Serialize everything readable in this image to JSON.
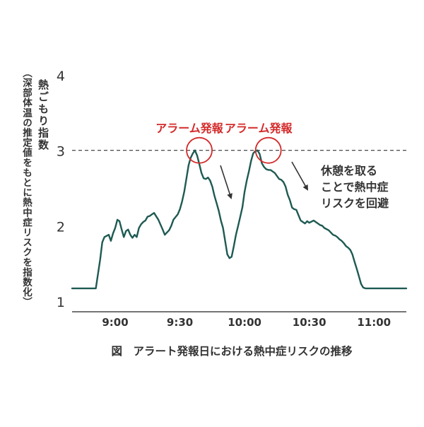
{
  "chart_data": {
    "type": "line",
    "caption": "図　アラート発報日における熱中症リスクの推移",
    "ylabel_main": "熱ごもり指数",
    "ylabel_sub": "（深部体温の推定値をもとに熱中症リスクを指数化）",
    "ylim": [
      1,
      4
    ],
    "yticks": [
      "1",
      "2",
      "3",
      "4"
    ],
    "xticks": [
      {
        "label": "9:00",
        "t": 540
      },
      {
        "label": "9:30",
        "t": 570
      },
      {
        "label": "10:00",
        "t": 600
      },
      {
        "label": "10:30",
        "t": 630
      },
      {
        "label": "11:00",
        "t": 660
      }
    ],
    "xlim": [
      520,
      675
    ],
    "threshold": 3,
    "line_color": "#1e5a52",
    "alert_color": "#d42a2a",
    "alerts": [
      {
        "label": "アラーム発報",
        "t": 579,
        "y": 3.0
      },
      {
        "label": "アラーム発報",
        "t": 611,
        "y": 3.0
      }
    ],
    "annotation_lines": [
      "休憩を取る",
      "ことで熱中症",
      "リスクを回避"
    ],
    "series": [
      {
        "x": [
          520,
          531,
          533,
          534,
          535,
          537,
          538,
          539,
          540,
          541,
          542,
          543,
          544,
          545,
          546,
          547,
          548,
          549,
          550,
          551,
          552,
          553,
          554,
          555,
          556,
          557,
          558,
          560,
          562,
          563,
          565,
          566,
          567,
          569,
          570,
          571,
          572,
          573,
          574,
          575,
          576,
          577,
          578,
          579,
          580,
          581,
          582,
          583,
          584,
          585,
          586,
          587,
          588,
          589,
          590,
          592,
          593,
          594,
          595,
          596,
          597,
          598,
          599,
          600,
          601,
          602,
          603,
          604,
          605,
          606,
          607,
          608,
          609,
          610,
          611,
          612,
          613,
          614,
          615,
          616,
          617,
          618,
          619,
          620,
          621,
          622,
          623,
          624,
          625,
          626,
          627,
          628,
          629,
          630,
          632,
          633,
          634,
          635,
          636,
          637,
          639,
          640,
          641,
          642,
          643,
          644,
          645,
          646,
          647,
          648,
          649,
          650,
          651,
          652,
          653,
          654,
          655,
          656,
          657,
          658,
          659,
          660,
          661,
          662,
          663,
          664,
          675
        ],
        "y": [
          1.17,
          1.17,
          1.55,
          1.78,
          1.85,
          1.88,
          1.8,
          1.9,
          1.97,
          2.08,
          2.06,
          1.95,
          1.85,
          1.93,
          1.95,
          1.88,
          1.84,
          1.88,
          1.85,
          1.97,
          2.02,
          2.05,
          2.07,
          2.12,
          2.13,
          2.15,
          2.17,
          2.08,
          1.95,
          1.88,
          1.94,
          2.0,
          2.08,
          2.15,
          2.22,
          2.32,
          2.45,
          2.62,
          2.8,
          2.9,
          2.96,
          3.0,
          2.93,
          2.82,
          2.7,
          2.63,
          2.62,
          2.64,
          2.6,
          2.52,
          2.4,
          2.3,
          2.2,
          2.07,
          1.97,
          1.62,
          1.57,
          1.59,
          1.73,
          1.88,
          2.0,
          2.12,
          2.25,
          2.45,
          2.6,
          2.72,
          2.86,
          2.96,
          2.99,
          3.0,
          2.95,
          2.83,
          2.78,
          2.75,
          2.74,
          2.74,
          2.72,
          2.7,
          2.66,
          2.62,
          2.61,
          2.58,
          2.52,
          2.41,
          2.34,
          2.24,
          2.22,
          2.21,
          2.14,
          2.07,
          2.05,
          2.03,
          2.06,
          2.04,
          2.07,
          2.05,
          2.03,
          2.01,
          2.0,
          1.97,
          1.94,
          1.91,
          1.88,
          1.87,
          1.85,
          1.82,
          1.8,
          1.77,
          1.73,
          1.71,
          1.68,
          1.62,
          1.52,
          1.43,
          1.33,
          1.23,
          1.18,
          1.17,
          1.17,
          1.17,
          1.17,
          1.17,
          1.17,
          1.17,
          1.17,
          1.17,
          1.17
        ]
      }
    ]
  }
}
